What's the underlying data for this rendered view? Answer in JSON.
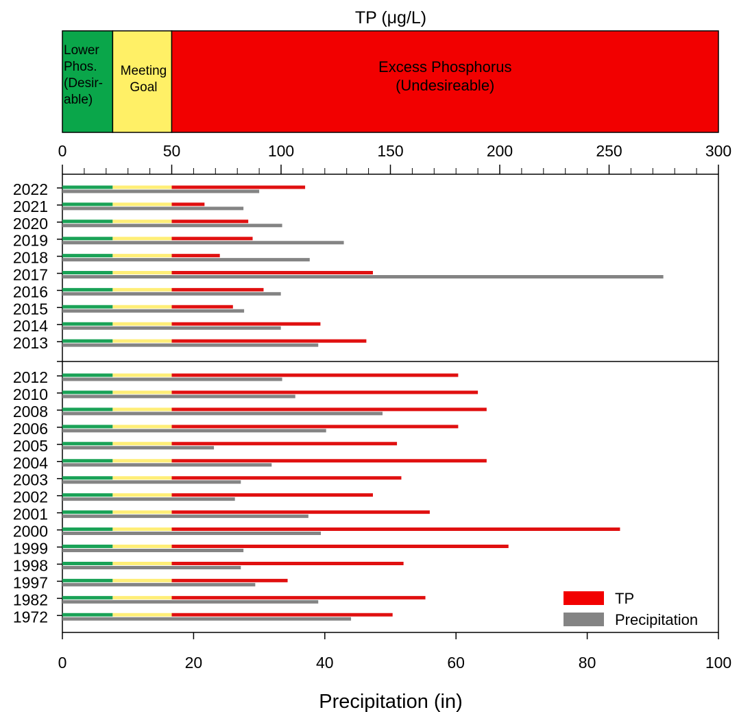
{
  "chart_data": {
    "type": "bar",
    "colors": {
      "lower": "#0aa64a",
      "meeting": "#fff066",
      "excess": "#f20000",
      "tp_bar": "#e01010",
      "precipitation_bar": "#848484",
      "lower_line": "#1aa257",
      "meeting_line": "#ffee77"
    },
    "top_axis": {
      "title": "TP (μg/L)",
      "range": [
        0,
        300
      ],
      "ticks": [
        "0",
        "50",
        "100",
        "150",
        "200",
        "250",
        "300"
      ],
      "categories": [
        {
          "label_lines": [
            "Lower",
            "Phos.",
            "(Desir-",
            "able)"
          ],
          "from": 0,
          "to": 23
        },
        {
          "label_lines": [
            "Meeting",
            "Goal"
          ],
          "from": 23,
          "to": 50
        },
        {
          "label_lines": [
            "Excess Phosphorus",
            "(Undesireable)"
          ],
          "from": 50,
          "to": 300
        }
      ]
    },
    "bottom_axis": {
      "title": "Precipitation (in)",
      "range": [
        0,
        100
      ],
      "ticks": [
        "0",
        "20",
        "40",
        "60",
        "80",
        "100"
      ]
    },
    "legend": {
      "position": "bottom-right",
      "items": [
        {
          "label": "TP",
          "color_key": "excess"
        },
        {
          "label": "Precipitation",
          "color_key": "precipitation_bar"
        }
      ]
    },
    "panels": [
      {
        "years": [
          "2022",
          "2021",
          "2020",
          "2019",
          "2018",
          "2017",
          "2016",
          "2015",
          "2014",
          "2013"
        ],
        "tp_ug_per_l": [
          111,
          65,
          85,
          87,
          72,
          142,
          92,
          78,
          118,
          139
        ],
        "precipitation_in": [
          30,
          27.6,
          33.5,
          42.9,
          37.7,
          91.6,
          33.3,
          27.7,
          33.3,
          39
        ]
      },
      {
        "years": [
          "2012",
          "2010",
          "2008",
          "2006",
          "2005",
          "2004",
          "2003",
          "2002",
          "2001",
          "2000",
          "1999",
          "1998",
          "1997",
          "1982",
          "1972"
        ],
        "tp_ug_per_l": [
          181,
          190,
          194,
          181,
          153,
          194,
          155,
          142,
          168,
          255,
          204,
          156,
          103,
          166,
          151
        ],
        "precipitation_in": [
          33.5,
          35.5,
          48.8,
          40.2,
          23.1,
          31.9,
          27.2,
          26.3,
          37.5,
          39.4,
          27.6,
          27.2,
          29.4,
          39,
          44
        ]
      }
    ]
  }
}
